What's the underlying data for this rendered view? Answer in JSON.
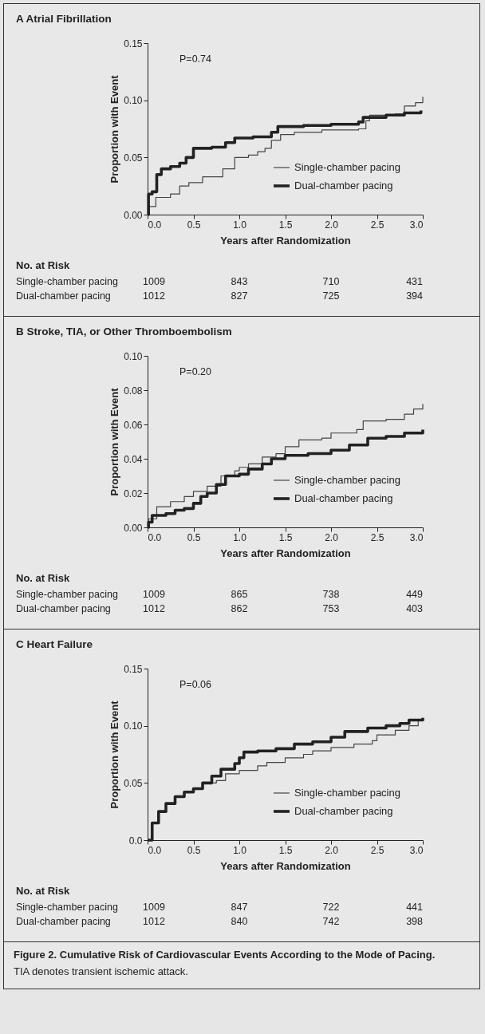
{
  "chart_data": [
    {
      "type": "step",
      "title": "A Atrial Fibrillation",
      "xlabel": "Years after Randomization",
      "ylabel": "Proportion with Event",
      "legend": "bottom right",
      "grid": false,
      "xlim": [
        0,
        3
      ],
      "xticks": [
        {
          "value": 0,
          "label": "0.0"
        },
        {
          "value": 0.5,
          "label": "0.5"
        },
        {
          "value": 1,
          "label": "1.0"
        },
        {
          "value": 1.5,
          "label": "1.5"
        },
        {
          "value": 2,
          "label": "2.0"
        },
        {
          "value": 2.5,
          "label": "2.5"
        },
        {
          "value": 3,
          "label": "3.0"
        }
      ],
      "ylim": [
        0,
        0.15
      ],
      "yticks": [
        {
          "value": 0,
          "label": "0.00"
        },
        {
          "value": 0.05,
          "label": "0.05"
        },
        {
          "value": 0.1,
          "label": "0.10"
        },
        {
          "value": 0.15,
          "label": "0.15"
        }
      ],
      "annotations": [
        "P=0.74",
        "No. at Risk",
        "Single-chamber pacing",
        "1009",
        "843",
        "710",
        "431",
        "Dual-chamber pacing",
        "1012",
        "827",
        "725",
        "394"
      ],
      "series": [
        {
          "name": "Single-chamber pacing",
          "color": "#444444",
          "x": [
            0,
            0.02,
            0.09,
            0.25,
            0.35,
            0.45,
            0.6,
            0.82,
            0.95,
            1.1,
            1.2,
            1.28,
            1.35,
            1.45,
            1.6,
            1.9,
            2.3,
            2.38,
            2.42,
            2.7,
            2.8,
            2.92,
            3.0
          ],
          "values": [
            0,
            0.007,
            0.015,
            0.018,
            0.025,
            0.028,
            0.033,
            0.04,
            0.05,
            0.052,
            0.055,
            0.058,
            0.065,
            0.07,
            0.072,
            0.074,
            0.075,
            0.082,
            0.087,
            0.088,
            0.095,
            0.098,
            0.103
          ]
        },
        {
          "name": "Dual-chamber pacing",
          "color": "#222222",
          "x": [
            0,
            0.01,
            0.05,
            0.1,
            0.15,
            0.25,
            0.35,
            0.42,
            0.5,
            0.7,
            0.85,
            0.95,
            1.15,
            1.35,
            1.42,
            1.7,
            2.0,
            2.3,
            2.35,
            2.6,
            2.8,
            2.98
          ],
          "values": [
            0,
            0.018,
            0.02,
            0.035,
            0.04,
            0.042,
            0.045,
            0.05,
            0.058,
            0.059,
            0.063,
            0.067,
            0.068,
            0.072,
            0.077,
            0.078,
            0.079,
            0.081,
            0.085,
            0.087,
            0.089,
            0.091
          ]
        }
      ]
    },
    {
      "type": "step",
      "title": "B Stroke, TIA, or Other Thromboembolism",
      "xlabel": "Years after Randomization",
      "ylabel": "Proportion with Event",
      "legend": "bottom right",
      "grid": false,
      "xlim": [
        0,
        3
      ],
      "xticks": [
        {
          "value": 0,
          "label": "0.0"
        },
        {
          "value": 0.5,
          "label": "0.5"
        },
        {
          "value": 1,
          "label": "1.0"
        },
        {
          "value": 1.5,
          "label": "1.5"
        },
        {
          "value": 2,
          "label": "2.0"
        },
        {
          "value": 2.5,
          "label": "2.5"
        },
        {
          "value": 3,
          "label": "3.0"
        }
      ],
      "ylim": [
        0,
        0.1
      ],
      "yticks": [
        {
          "value": 0,
          "label": "0.00"
        },
        {
          "value": 0.02,
          "label": "0.02"
        },
        {
          "value": 0.04,
          "label": "0.04"
        },
        {
          "value": 0.06,
          "label": "0.06"
        },
        {
          "value": 0.08,
          "label": "0.08"
        },
        {
          "value": 0.1,
          "label": "0.10"
        }
      ],
      "annotations": [
        "P=0.20",
        "No. at Risk",
        "Single-chamber pacing",
        "1009",
        "865",
        "738",
        "449",
        "Dual-chamber pacing",
        "1012",
        "862",
        "753",
        "403"
      ],
      "series": [
        {
          "name": "Single-chamber pacing",
          "color": "#444444",
          "x": [
            0,
            0.01,
            0.1,
            0.25,
            0.4,
            0.5,
            0.65,
            0.8,
            0.95,
            1.0,
            1.1,
            1.25,
            1.4,
            1.5,
            1.65,
            1.9,
            2.0,
            2.28,
            2.35,
            2.6,
            2.8,
            2.9,
            3.0
          ],
          "values": [
            0,
            0.005,
            0.012,
            0.015,
            0.018,
            0.021,
            0.024,
            0.03,
            0.033,
            0.035,
            0.037,
            0.041,
            0.043,
            0.047,
            0.051,
            0.052,
            0.055,
            0.057,
            0.062,
            0.063,
            0.066,
            0.069,
            0.072
          ]
        },
        {
          "name": "Dual-chamber pacing",
          "color": "#222222",
          "x": [
            0,
            0.01,
            0.05,
            0.2,
            0.3,
            0.4,
            0.5,
            0.58,
            0.65,
            0.75,
            0.85,
            1.0,
            1.1,
            1.25,
            1.35,
            1.5,
            1.75,
            2.0,
            2.2,
            2.4,
            2.6,
            2.8,
            3.0
          ],
          "values": [
            0,
            0.003,
            0.007,
            0.008,
            0.01,
            0.011,
            0.014,
            0.018,
            0.02,
            0.025,
            0.03,
            0.031,
            0.034,
            0.037,
            0.04,
            0.042,
            0.043,
            0.045,
            0.048,
            0.052,
            0.053,
            0.055,
            0.057
          ]
        }
      ]
    },
    {
      "type": "step",
      "title": "C Heart Failure",
      "xlabel": "Years after Randomization",
      "ylabel": "Proportion with Event",
      "legend": "bottom right",
      "grid": false,
      "xlim": [
        0,
        3
      ],
      "xticks": [
        {
          "value": 0,
          "label": "0.0"
        },
        {
          "value": 0.5,
          "label": "0.5"
        },
        {
          "value": 1,
          "label": "1.0"
        },
        {
          "value": 1.5,
          "label": "1.5"
        },
        {
          "value": 2,
          "label": "2.0"
        },
        {
          "value": 2.5,
          "label": "2.5"
        },
        {
          "value": 3,
          "label": "3.0"
        }
      ],
      "ylim": [
        0,
        0.15
      ],
      "yticks": [
        {
          "value": 0,
          "label": "0.0"
        },
        {
          "value": 0.05,
          "label": "0.05"
        },
        {
          "value": 0.1,
          "label": "0.10"
        },
        {
          "value": 0.15,
          "label": "0.15"
        }
      ],
      "annotations": [
        "P=0.06",
        "No. at Risk",
        "Single-chamber pacing",
        "1009",
        "847",
        "722",
        "441",
        "Dual-chamber pacing",
        "1012",
        "840",
        "742",
        "398",
        "Figure 2. Cumulative Risk of Cardiovascular Events According to the Mode of Pacing.",
        "TIA denotes transient ischemic attack."
      ],
      "series": [
        {
          "name": "Single-chamber pacing",
          "color": "#444444",
          "x": [
            0,
            0.05,
            0.12,
            0.2,
            0.3,
            0.4,
            0.5,
            0.6,
            0.75,
            0.85,
            1.0,
            1.2,
            1.3,
            1.5,
            1.7,
            1.8,
            2.0,
            2.25,
            2.45,
            2.5,
            2.7,
            2.85,
            2.95,
            3.0
          ],
          "values": [
            0,
            0.015,
            0.025,
            0.032,
            0.038,
            0.042,
            0.045,
            0.05,
            0.052,
            0.058,
            0.061,
            0.065,
            0.068,
            0.072,
            0.075,
            0.078,
            0.081,
            0.084,
            0.087,
            0.092,
            0.096,
            0.1,
            0.105,
            0.107
          ]
        },
        {
          "name": "Dual-chamber pacing",
          "color": "#222222",
          "x": [
            0,
            0.05,
            0.12,
            0.2,
            0.3,
            0.4,
            0.5,
            0.6,
            0.7,
            0.8,
            0.95,
            1.0,
            1.05,
            1.2,
            1.4,
            1.6,
            1.8,
            2.0,
            2.15,
            2.4,
            2.6,
            2.75,
            2.85,
            3.0
          ],
          "values": [
            0,
            0.015,
            0.025,
            0.032,
            0.038,
            0.042,
            0.045,
            0.05,
            0.056,
            0.062,
            0.067,
            0.072,
            0.077,
            0.078,
            0.08,
            0.084,
            0.086,
            0.09,
            0.095,
            0.098,
            0.1,
            0.102,
            0.105,
            0.107
          ]
        }
      ]
    }
  ]
}
